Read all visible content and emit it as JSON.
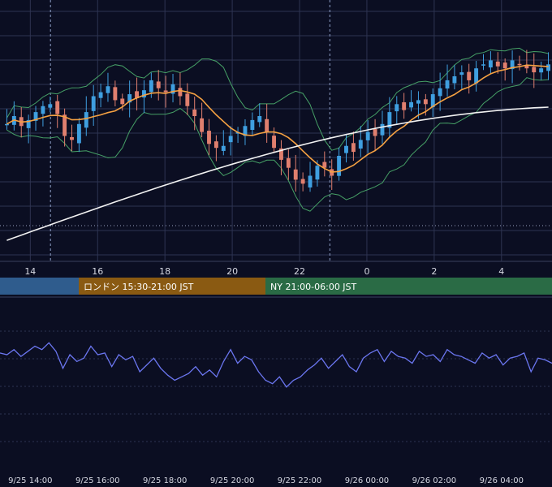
{
  "colors": {
    "background": "#0b0e22",
    "grid": "#2e3452",
    "candle_up": "#3f9fe0",
    "candle_down": "#e07f6e",
    "sma_short": "#f5a142",
    "sma_long": "#f2f2f2",
    "bollinger": "#46a066",
    "oscillator": "#6b76f0",
    "session_tokyo": "#2f5c8d",
    "session_london": "#8a5a12",
    "session_ny": "#2a6b45"
  },
  "sessions": [
    {
      "label": "",
      "color": "#2f5c8d"
    },
    {
      "label": "ロンドン 15:30-21:00 JST",
      "color": "#8a5a12"
    },
    {
      "label": "NY 21:00-06:00 JST",
      "color": "#2a6b45"
    }
  ],
  "chart_data": [
    {
      "type": "candlestick",
      "title": "",
      "x_tick_labels": [
        "14",
        "16",
        "18",
        "20",
        "22",
        "0",
        "2",
        "4"
      ],
      "x_range_hours": [
        13.1,
        29.5
      ],
      "ylim": [
        0,
        100
      ],
      "indicators": [
        "short moving average (orange)",
        "long moving average (white)",
        "bollinger bands (green)"
      ],
      "session_markers_hours": [
        14.6,
        22.9
      ],
      "closes": [
        56,
        60,
        55,
        58,
        62,
        65,
        66,
        61,
        50,
        48,
        56,
        62,
        70,
        72,
        75,
        68,
        66,
        71,
        69,
        73,
        78,
        74,
        72,
        76,
        70,
        65,
        60,
        52,
        46,
        44,
        45,
        50,
        52,
        55,
        58,
        60,
        52,
        44,
        38,
        34,
        28,
        26,
        30,
        35,
        34,
        30,
        40,
        45,
        42,
        48,
        52,
        50,
        56,
        62,
        66,
        63,
        67,
        68,
        66,
        71,
        74,
        78,
        80,
        82,
        78,
        84,
        86,
        88,
        85,
        84,
        88,
        86,
        84,
        82,
        84,
        86
      ]
    },
    {
      "type": "line",
      "title": "",
      "x_tick_labels": [
        "9/25 14:00",
        "9/25 16:00",
        "9/25 18:00",
        "9/25 20:00",
        "9/25 22:00",
        "9/26 00:00",
        "9/26 02:00",
        "9/26 04:00"
      ],
      "ylim": [
        0,
        100
      ],
      "values": [
        62,
        60,
        66,
        58,
        64,
        70,
        66,
        74,
        64,
        44,
        60,
        52,
        56,
        70,
        60,
        62,
        46,
        60,
        54,
        58,
        40,
        48,
        56,
        44,
        36,
        30,
        34,
        38,
        46,
        36,
        42,
        34,
        52,
        66,
        50,
        58,
        54,
        40,
        30,
        26,
        34,
        22,
        30,
        34,
        42,
        48,
        56,
        44,
        52,
        60,
        46,
        40,
        56,
        62,
        66,
        52,
        64,
        58,
        56,
        50,
        64,
        58,
        60,
        52,
        66,
        60,
        58,
        54,
        50,
        62,
        56,
        60,
        48,
        56,
        58,
        62,
        40,
        56,
        54,
        50
      ]
    }
  ]
}
